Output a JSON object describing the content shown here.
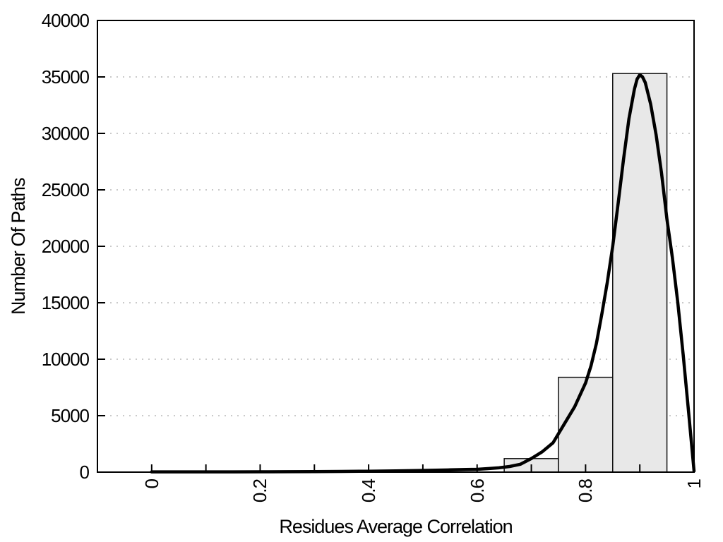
{
  "figure": {
    "title": "",
    "x_axis": {
      "label": "Residues Average Correlation",
      "min": -0.1,
      "max": 1.0,
      "tick_range": [
        0,
        1
      ],
      "tick_step": 0.1,
      "tick_labels": [
        {
          "value": 0,
          "text": "0"
        },
        {
          "value": 0.2,
          "text": "0.2"
        },
        {
          "value": 0.4,
          "text": "0.4"
        },
        {
          "value": 0.6,
          "text": "0.6"
        },
        {
          "value": 0.8,
          "text": "0.8"
        },
        {
          "value": 1,
          "text": "1"
        }
      ]
    },
    "y_axis": {
      "label": "Number Of Paths",
      "min": 0,
      "max": 40000,
      "tick_step": 5000,
      "tick_labels": [
        {
          "value": 0,
          "text": "0"
        },
        {
          "value": 5000,
          "text": "5000"
        },
        {
          "value": 10000,
          "text": "10000"
        },
        {
          "value": 15000,
          "text": "15000"
        },
        {
          "value": 20000,
          "text": "20000"
        },
        {
          "value": 25000,
          "text": "25000"
        },
        {
          "value": 30000,
          "text": "30000"
        },
        {
          "value": 35000,
          "text": "35000"
        },
        {
          "value": 40000,
          "text": "40000"
        }
      ]
    },
    "colors": {
      "background": "#ffffff",
      "bar_fill": "#e8e8e8",
      "bar_border": "#111111",
      "curve": "#000000",
      "grid": "#b8b8b8",
      "axis": "#000000",
      "text": "#000000"
    }
  },
  "chart_data": {
    "type": "bar",
    "subtype": "histogram_with_fit_curve",
    "title": "",
    "xlabel": "Residues Average Correlation",
    "ylabel": "Number Of Paths",
    "xlim": [
      -0.1,
      1.0
    ],
    "ylim": [
      0,
      40000
    ],
    "grid": "horizontal dotted lines at every 5000",
    "legend": "none",
    "bins": [
      {
        "x0": 0.65,
        "x1": 0.75,
        "count": 1200
      },
      {
        "x0": 0.75,
        "x1": 0.85,
        "count": 8400
      },
      {
        "x0": 0.85,
        "x1": 0.95,
        "count": 35300
      }
    ],
    "fit_curve": {
      "description": "smooth skewed distribution fit, peak ~35200 at x=0.90, reaching 0 at x=1.0",
      "x": [
        0,
        0.05,
        0.1,
        0.15,
        0.2,
        0.25,
        0.3,
        0.35,
        0.4,
        0.45,
        0.5,
        0.55,
        0.58,
        0.6,
        0.62,
        0.64,
        0.66,
        0.68,
        0.7,
        0.72,
        0.74,
        0.76,
        0.78,
        0.8,
        0.81,
        0.82,
        0.83,
        0.84,
        0.85,
        0.86,
        0.87,
        0.88,
        0.89,
        0.895,
        0.9,
        0.905,
        0.91,
        0.92,
        0.93,
        0.94,
        0.95,
        0.96,
        0.97,
        0.98,
        0.99,
        1.0
      ],
      "y": [
        25,
        25,
        25,
        28,
        32,
        38,
        45,
        60,
        80,
        110,
        150,
        200,
        230,
        250,
        310,
        380,
        500,
        700,
        1200,
        1800,
        2600,
        4200,
        5800,
        7900,
        9400,
        11400,
        14000,
        16800,
        20000,
        23800,
        27700,
        31300,
        33900,
        34800,
        35200,
        35000,
        34500,
        32600,
        29900,
        26500,
        22400,
        19000,
        15000,
        10400,
        5300,
        100
      ]
    }
  }
}
